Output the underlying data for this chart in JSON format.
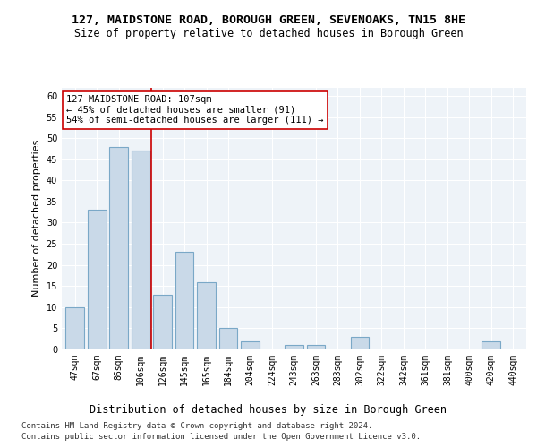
{
  "title": "127, MAIDSTONE ROAD, BOROUGH GREEN, SEVENOAKS, TN15 8HE",
  "subtitle": "Size of property relative to detached houses in Borough Green",
  "xlabel": "Distribution of detached houses by size in Borough Green",
  "ylabel": "Number of detached properties",
  "categories": [
    "47sqm",
    "67sqm",
    "86sqm",
    "106sqm",
    "126sqm",
    "145sqm",
    "165sqm",
    "184sqm",
    "204sqm",
    "224sqm",
    "243sqm",
    "263sqm",
    "283sqm",
    "302sqm",
    "322sqm",
    "342sqm",
    "361sqm",
    "381sqm",
    "400sqm",
    "420sqm",
    "440sqm"
  ],
  "values": [
    10,
    33,
    48,
    47,
    13,
    23,
    16,
    5,
    2,
    0,
    1,
    1,
    0,
    3,
    0,
    0,
    0,
    0,
    0,
    2,
    0
  ],
  "bar_color": "#c9d9e8",
  "bar_edge_color": "#7aa8c7",
  "bar_linewidth": 0.8,
  "ylim": [
    0,
    62
  ],
  "yticks": [
    0,
    5,
    10,
    15,
    20,
    25,
    30,
    35,
    40,
    45,
    50,
    55,
    60
  ],
  "vline_x_index": 3.5,
  "vline_color": "#cc0000",
  "annotation_text": "127 MAIDSTONE ROAD: 107sqm\n← 45% of detached houses are smaller (91)\n54% of semi-detached houses are larger (111) →",
  "annotation_box_color": "#ffffff",
  "annotation_box_edge_color": "#cc0000",
  "footer_line1": "Contains HM Land Registry data © Crown copyright and database right 2024.",
  "footer_line2": "Contains public sector information licensed under the Open Government Licence v3.0.",
  "bg_color": "#eef3f8",
  "fig_bg_color": "#ffffff",
  "title_fontsize": 9.5,
  "subtitle_fontsize": 8.5,
  "xlabel_fontsize": 8.5,
  "ylabel_fontsize": 8,
  "footer_fontsize": 6.5,
  "tick_fontsize": 7,
  "annotation_fontsize": 7.5
}
